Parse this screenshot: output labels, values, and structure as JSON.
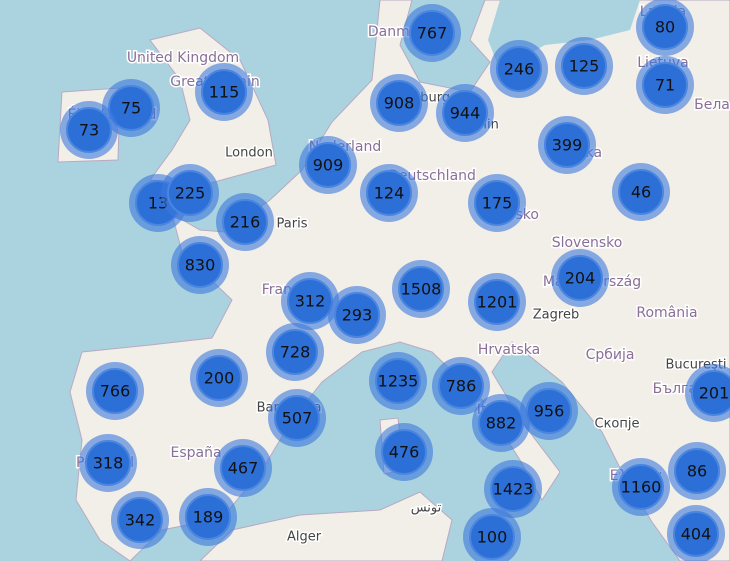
{
  "map": {
    "labels": [
      "United Kingdom",
      "Great Britain",
      "Éire / Ireland",
      "London",
      "Nederland",
      "Hamburg",
      "Berlin",
      "Deutschland",
      "Paris",
      "France",
      "Česko",
      "Polska",
      "Slovensko",
      "Magyarország",
      "Zagreb",
      "România",
      "Hrvatska",
      "Србија",
      "Bucureşti",
      "България",
      "Italia",
      "Скопје",
      "Barcelona",
      "España",
      "Portugal",
      "Alger",
      "تونس",
      "Danmark",
      "Latvija",
      "Lietuva",
      "Бела",
      "Ελλάδα"
    ],
    "clusters": [
      767,
      80,
      246,
      125,
      71,
      75,
      115,
      73,
      908,
      944,
      399,
      909,
      124,
      175,
      46,
      13,
      225,
      216,
      830,
      204,
      312,
      293,
      1508,
      1201,
      728,
      200,
      766,
      1235,
      786,
      956,
      201,
      507,
      882,
      476,
      318,
      467,
      86,
      1160,
      1423,
      342,
      189,
      100,
      404
    ]
  }
}
